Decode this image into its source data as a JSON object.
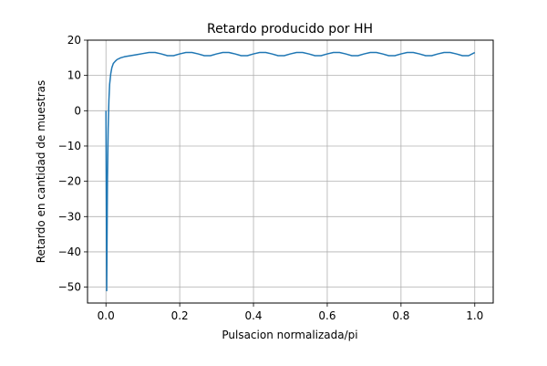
{
  "chart_data": {
    "type": "line",
    "title": "Retardo producido por HH",
    "xlabel": "Pulsacion normalizada/pi",
    "ylabel": "Retardo en cantidad de muestras",
    "xlim": [
      -0.05,
      1.05
    ],
    "ylim": [
      -54.5,
      20
    ],
    "xticks": [
      0.0,
      0.2,
      0.4,
      0.6,
      0.8,
      1.0
    ],
    "xtick_labels": [
      "0.0",
      "0.2",
      "0.4",
      "0.6",
      "0.8",
      "1.0"
    ],
    "yticks": [
      20,
      10,
      0,
      -10,
      -20,
      -30,
      -40,
      -50
    ],
    "ytick_labels": [
      "20",
      "10",
      "0",
      "−10",
      "−20",
      "−30",
      "−40",
      "−50"
    ],
    "grid": true,
    "line_color": "#1f77b4",
    "series": [
      {
        "x": [
          0.0,
          0.002,
          0.004,
          0.006,
          0.008,
          0.01,
          0.013,
          0.016,
          0.02,
          0.025,
          0.03,
          0.04,
          0.05,
          0.0667,
          0.0833,
          0.1,
          0.1167,
          0.1333,
          0.15,
          0.1667,
          0.1833,
          0.2,
          0.2167,
          0.2333,
          0.25,
          0.2667,
          0.2833,
          0.3,
          0.3167,
          0.3333,
          0.35,
          0.3667,
          0.3833,
          0.4,
          0.4167,
          0.4333,
          0.45,
          0.4667,
          0.4833,
          0.5,
          0.5167,
          0.5333,
          0.55,
          0.5667,
          0.5833,
          0.6,
          0.6167,
          0.6333,
          0.65,
          0.6667,
          0.6833,
          0.7,
          0.7167,
          0.7333,
          0.75,
          0.7667,
          0.7833,
          0.8,
          0.8167,
          0.8333,
          0.85,
          0.8667,
          0.8833,
          0.9,
          0.9167,
          0.9333,
          0.95,
          0.9667,
          0.9833,
          1.0
        ],
        "y": [
          0,
          -51,
          -20,
          -5,
          3,
          7.5,
          10.5,
          12.2,
          13.4,
          14.0,
          14.5,
          15.0,
          15.3,
          15.6,
          15.9,
          16.2,
          16.5,
          16.5,
          16.1,
          15.6,
          15.6,
          16.1,
          16.5,
          16.5,
          16.1,
          15.6,
          15.6,
          16.1,
          16.5,
          16.5,
          16.1,
          15.6,
          15.6,
          16.1,
          16.5,
          16.5,
          16.1,
          15.6,
          15.6,
          16.1,
          16.5,
          16.5,
          16.1,
          15.6,
          15.6,
          16.1,
          16.5,
          16.5,
          16.1,
          15.6,
          15.6,
          16.1,
          16.5,
          16.5,
          16.1,
          15.6,
          15.6,
          16.1,
          16.5,
          16.5,
          16.1,
          15.6,
          15.6,
          16.1,
          16.5,
          16.5,
          16.1,
          15.6,
          15.6,
          16.5
        ]
      }
    ]
  }
}
